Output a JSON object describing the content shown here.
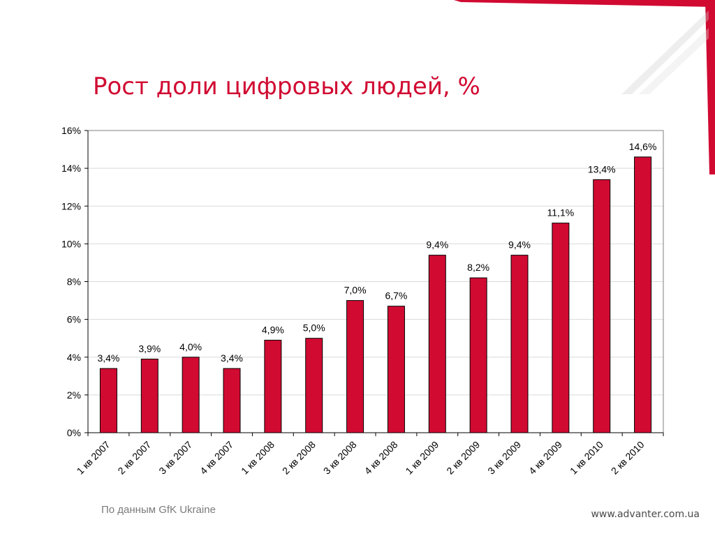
{
  "slide": {
    "title": "Рост доли цифровых людей, %",
    "source": "По данным GfK Ukraine",
    "website": "www.advanter.com.ua"
  },
  "colors": {
    "accent": "#d10a32",
    "bar_fill": "#d10a32",
    "bar_stroke": "#000000",
    "grid": "#d9d9d9",
    "text": "#000000"
  },
  "chart_data": {
    "type": "bar",
    "title": "",
    "xlabel": "",
    "ylabel": "",
    "ylim": [
      0,
      16
    ],
    "yticks": [
      0,
      2,
      4,
      6,
      8,
      10,
      12,
      14,
      16
    ],
    "ytick_labels": [
      "0%",
      "2%",
      "4%",
      "6%",
      "8%",
      "10%",
      "12%",
      "14%",
      "16%"
    ],
    "grid": true,
    "categories": [
      "1 кв 2007",
      "2 кв 2007",
      "3 кв 2007",
      "4 кв 2007",
      "1 кв 2008",
      "2 кв 2008",
      "3 кв 2008",
      "4 кв 2008",
      "1 кв 2009",
      "2 кв 2009",
      "3 кв 2009",
      "4 кв 2009",
      "1 кв 2010",
      "2 кв 2010"
    ],
    "values": [
      3.4,
      3.9,
      4.0,
      3.4,
      4.9,
      5.0,
      7.0,
      6.7,
      9.4,
      8.2,
      9.4,
      11.1,
      13.4,
      14.6
    ],
    "data_labels": [
      "3,4%",
      "3,9%",
      "4,0%",
      "3,4%",
      "4,9%",
      "5,0%",
      "7,0%",
      "6,7%",
      "9,4%",
      "8,2%",
      "9,4%",
      "11,1%",
      "13,4%",
      "14,6%"
    ]
  }
}
